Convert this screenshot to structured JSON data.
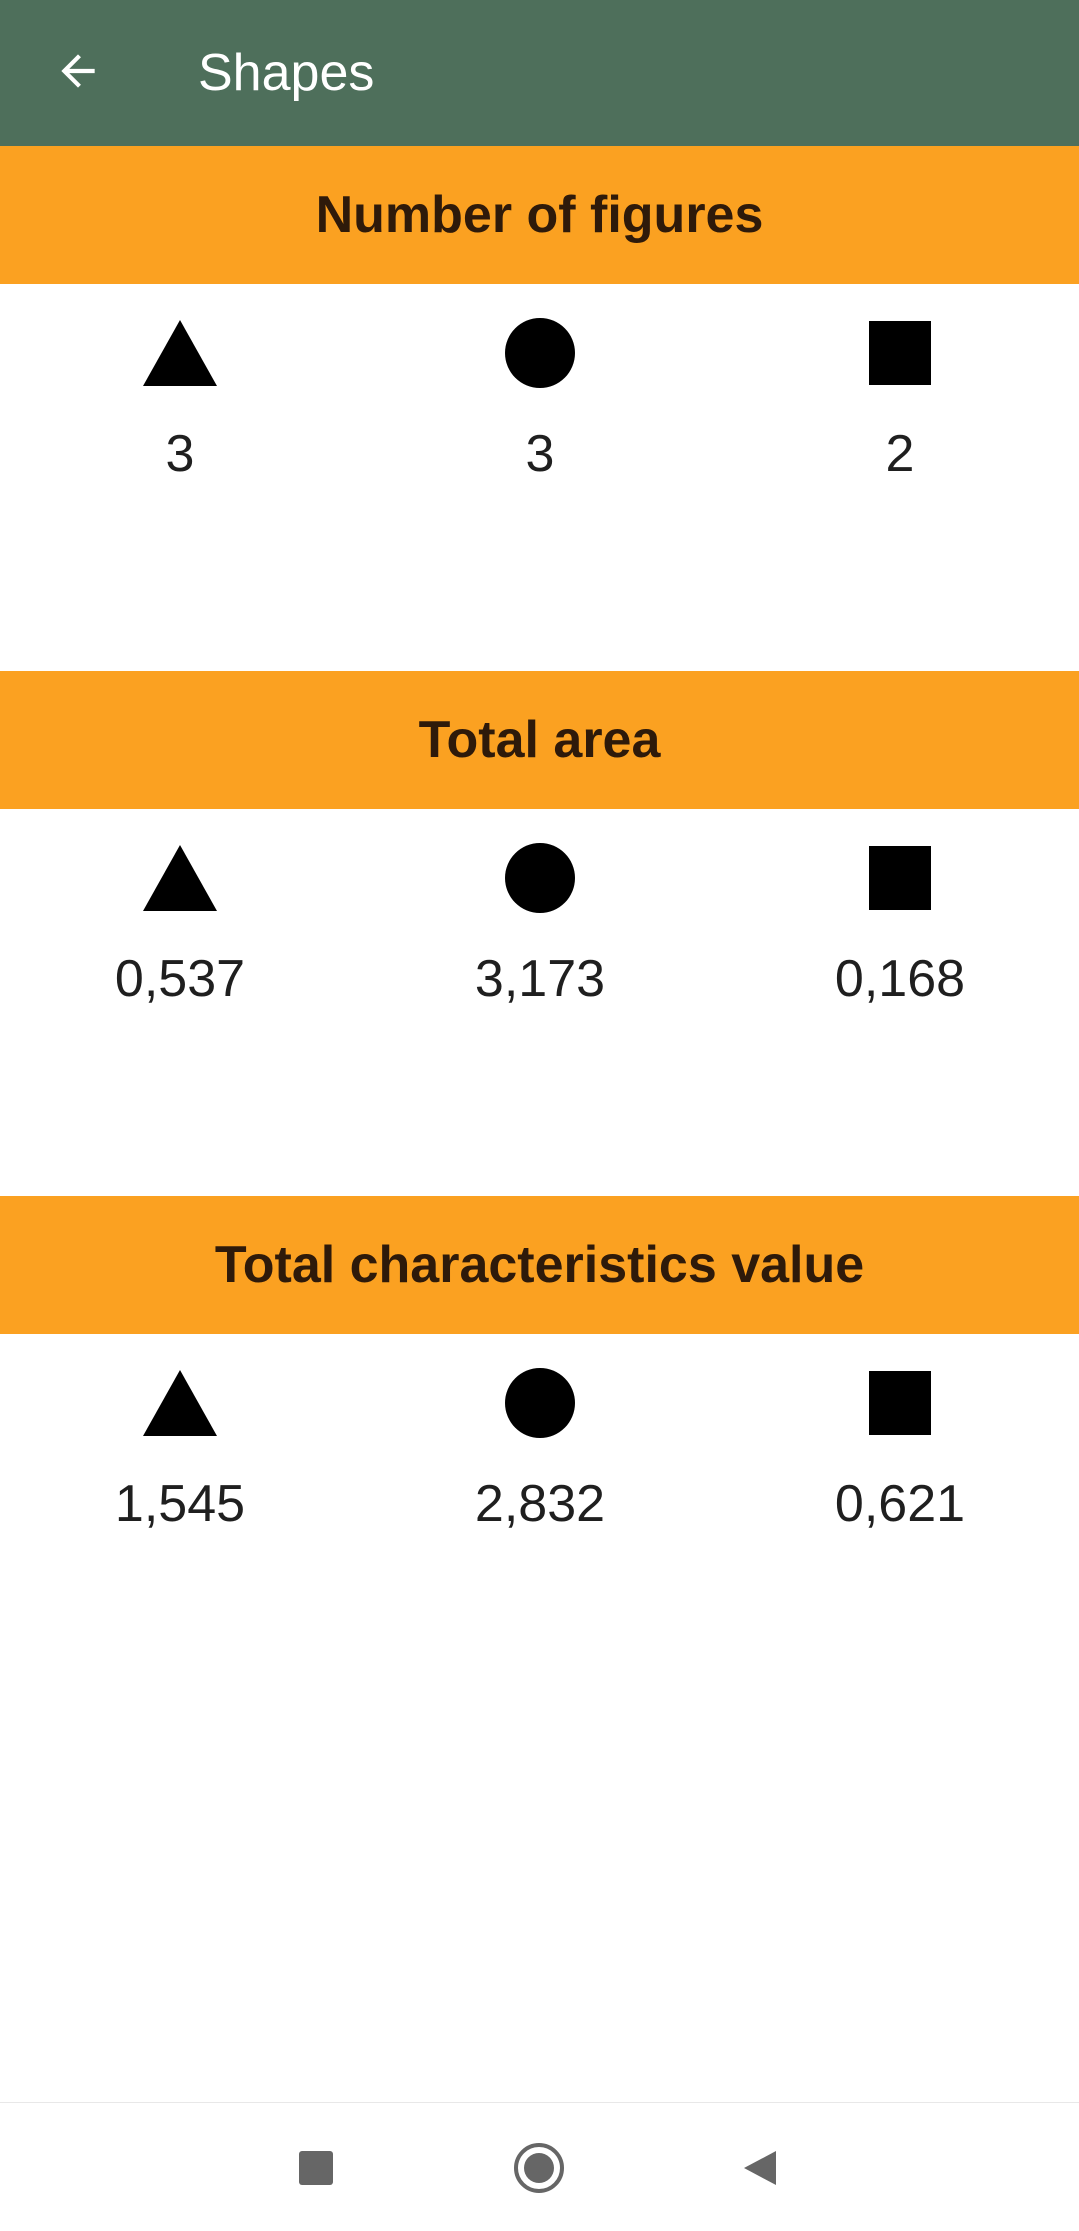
{
  "app_bar": {
    "title": "Shapes",
    "back_icon": "arrow-left-icon",
    "background": "#4e6f5b"
  },
  "accent_color": "#fba121",
  "sections": [
    {
      "title": "Number of figures",
      "triangle": "3",
      "circle": "3",
      "square": "2"
    },
    {
      "title": "Total area",
      "triangle": "0,537",
      "circle": "3,173",
      "square": "0,168"
    },
    {
      "title": "Total characteristics value",
      "triangle": "1,545",
      "circle": "2,832",
      "square": "0,621"
    }
  ],
  "nav_bar": {
    "recents_icon": "square-icon",
    "home_icon": "home-circle-icon",
    "back_icon": "triangle-back-icon"
  }
}
